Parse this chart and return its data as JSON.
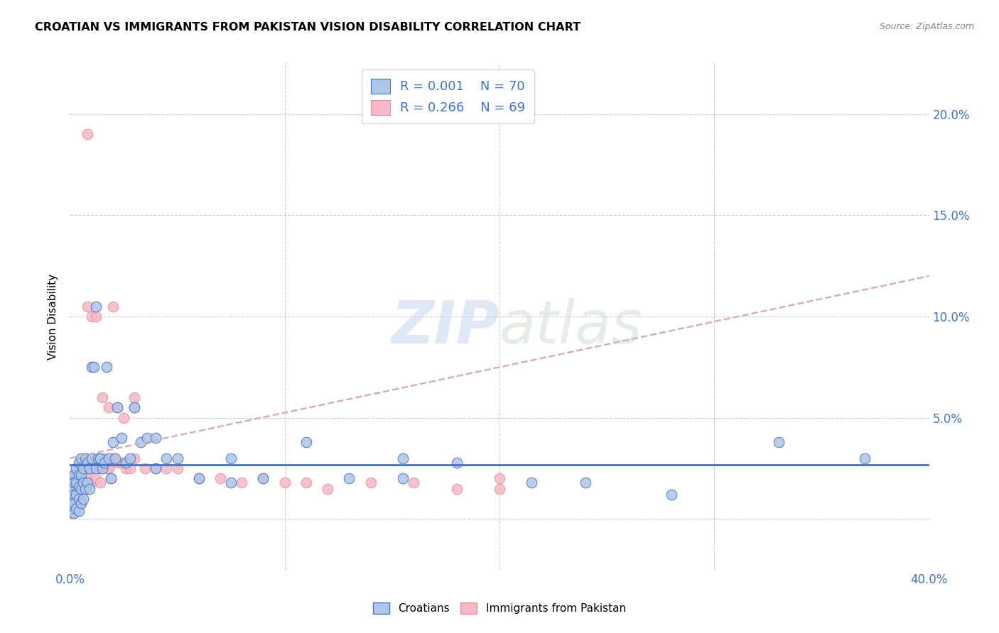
{
  "title": "CROATIAN VS IMMIGRANTS FROM PAKISTAN VISION DISABILITY CORRELATION CHART",
  "source": "Source: ZipAtlas.com",
  "ylabel": "Vision Disability",
  "xlim": [
    0.0,
    0.4
  ],
  "ylim": [
    -0.025,
    0.225
  ],
  "yticks": [
    0.0,
    0.05,
    0.1,
    0.15,
    0.2
  ],
  "ytick_labels": [
    "",
    "5.0%",
    "10.0%",
    "15.0%",
    "20.0%"
  ],
  "right_ytick_labels": [
    "",
    "5.0%",
    "10.0%",
    "15.0%",
    "20.0%"
  ],
  "xticks": [
    0.0,
    0.1,
    0.2,
    0.3,
    0.4
  ],
  "xtick_labels": [
    "0.0%",
    "",
    "",
    "",
    "40.0%"
  ],
  "blue_color": "#aec6e8",
  "pink_color": "#f5b8c8",
  "blue_line_color": "#4472c4",
  "pink_line_color": "#e8909a",
  "axis_color": "#4472c4",
  "grid_color": "#cccccc",
  "watermark_zip": "ZIP",
  "watermark_atlas": "atlas",
  "legend_R_blue": "R = 0.001",
  "legend_N_blue": "N = 70",
  "legend_R_pink": "R = 0.266",
  "legend_N_pink": "N = 69",
  "croatians_x": [
    0.001,
    0.001,
    0.001,
    0.001,
    0.002,
    0.002,
    0.002,
    0.002,
    0.002,
    0.003,
    0.003,
    0.003,
    0.003,
    0.004,
    0.004,
    0.004,
    0.004,
    0.004,
    0.005,
    0.005,
    0.005,
    0.005,
    0.006,
    0.006,
    0.006,
    0.007,
    0.007,
    0.008,
    0.008,
    0.009,
    0.009,
    0.01,
    0.01,
    0.011,
    0.012,
    0.012,
    0.013,
    0.014,
    0.015,
    0.016,
    0.017,
    0.018,
    0.019,
    0.02,
    0.021,
    0.022,
    0.024,
    0.026,
    0.028,
    0.03,
    0.033,
    0.036,
    0.04,
    0.045,
    0.05,
    0.06,
    0.075,
    0.09,
    0.11,
    0.13,
    0.155,
    0.18,
    0.215,
    0.24,
    0.28,
    0.33,
    0.37,
    0.155,
    0.075,
    0.04
  ],
  "croatians_y": [
    0.02,
    0.015,
    0.01,
    0.005,
    0.022,
    0.018,
    0.012,
    0.008,
    0.003,
    0.025,
    0.018,
    0.012,
    0.005,
    0.028,
    0.022,
    0.016,
    0.01,
    0.004,
    0.03,
    0.022,
    0.015,
    0.008,
    0.025,
    0.018,
    0.01,
    0.03,
    0.015,
    0.028,
    0.018,
    0.025,
    0.015,
    0.075,
    0.03,
    0.075,
    0.105,
    0.025,
    0.03,
    0.03,
    0.025,
    0.028,
    0.075,
    0.03,
    0.02,
    0.038,
    0.03,
    0.055,
    0.04,
    0.028,
    0.03,
    0.055,
    0.038,
    0.04,
    0.04,
    0.03,
    0.03,
    0.02,
    0.03,
    0.02,
    0.038,
    0.02,
    0.03,
    0.028,
    0.018,
    0.018,
    0.012,
    0.038,
    0.03,
    0.02,
    0.018,
    0.025
  ],
  "pakistan_x": [
    0.001,
    0.001,
    0.001,
    0.001,
    0.001,
    0.002,
    0.002,
    0.002,
    0.002,
    0.003,
    0.003,
    0.003,
    0.004,
    0.004,
    0.004,
    0.005,
    0.005,
    0.005,
    0.006,
    0.006,
    0.007,
    0.007,
    0.008,
    0.008,
    0.009,
    0.01,
    0.01,
    0.011,
    0.012,
    0.013,
    0.014,
    0.015,
    0.016,
    0.017,
    0.018,
    0.019,
    0.02,
    0.022,
    0.024,
    0.026,
    0.028,
    0.03,
    0.035,
    0.04,
    0.045,
    0.05,
    0.06,
    0.07,
    0.08,
    0.09,
    0.1,
    0.11,
    0.12,
    0.14,
    0.16,
    0.18,
    0.2,
    0.01,
    0.012,
    0.015,
    0.018,
    0.022,
    0.025,
    0.03,
    0.008,
    0.008,
    0.02,
    0.03,
    0.2
  ],
  "pakistan_y": [
    0.02,
    0.015,
    0.01,
    0.005,
    0.003,
    0.022,
    0.015,
    0.01,
    0.005,
    0.02,
    0.015,
    0.008,
    0.025,
    0.018,
    0.01,
    0.022,
    0.015,
    0.008,
    0.028,
    0.018,
    0.025,
    0.015,
    0.03,
    0.02,
    0.025,
    0.028,
    0.018,
    0.025,
    0.02,
    0.025,
    0.018,
    0.025,
    0.03,
    0.025,
    0.025,
    0.02,
    0.03,
    0.028,
    0.028,
    0.025,
    0.025,
    0.03,
    0.025,
    0.025,
    0.025,
    0.025,
    0.02,
    0.02,
    0.018,
    0.02,
    0.018,
    0.018,
    0.015,
    0.018,
    0.018,
    0.015,
    0.015,
    0.1,
    0.1,
    0.06,
    0.055,
    0.055,
    0.05,
    0.055,
    0.19,
    0.105,
    0.105,
    0.06,
    0.02
  ]
}
